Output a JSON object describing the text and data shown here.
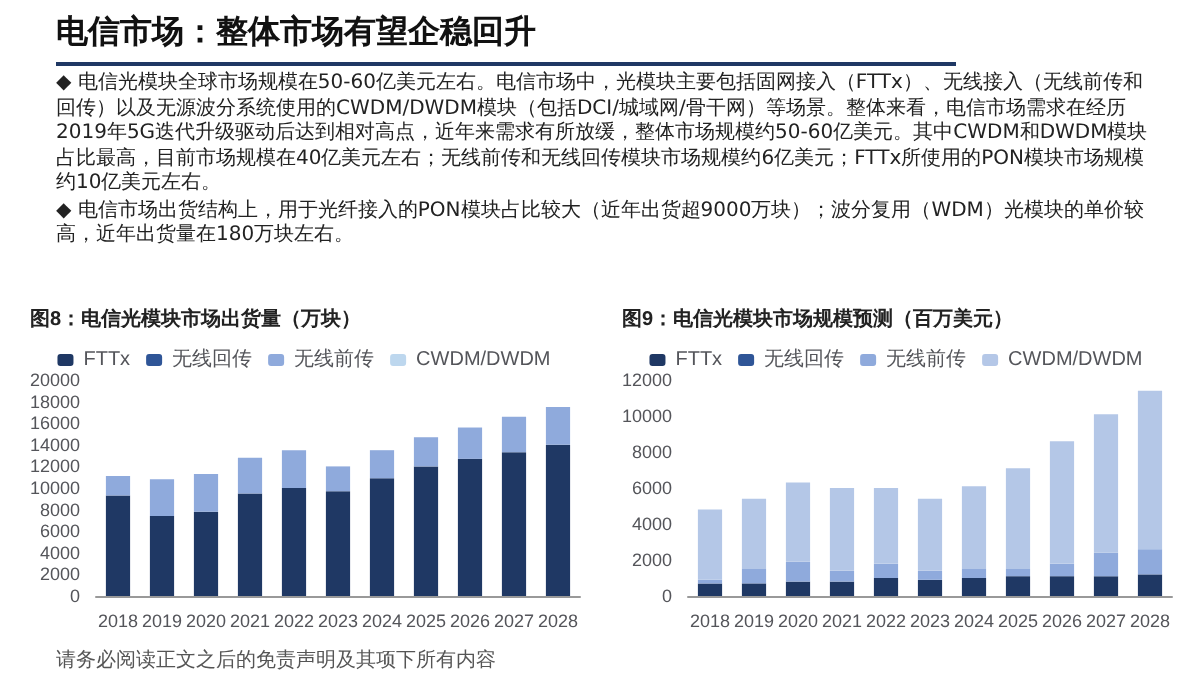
{
  "chart_data": [
    {
      "type": "other",
      "title": "电信市场：整体市场有望企稳回升",
      "annotations": [
        "◆ 电信光模块全球市场规模在50-60亿美元左右。电信市场中，光模块主要包括固网接入（FTTx）、无线接入（无线前传和回传）以及无源波分系统使用的CWDM/DWDM模块（包括DCI/城域网/骨干网）等场景。整体来看，电信市场需求在经历2019年5G迭代升级驱动后达到相对高点，近年来需求有所放缓，整体市场规模约50-60亿美元。其中CWDM和DWDM模块占比最高，目前市场规模在40亿美元左右；无线前传和无线回传模块市场规模约6亿美元；FTTx所使用的PON模块市场规模约10亿美元左右。",
        "◆ 电信市场出货结构上，用于光纤接入的PON模块占比较大（近年出货超9000万块）；波分复用（WDM）光模块的单价较高，近年出货量在180万块左右。",
        "请务必阅读正文之后的免责声明及其项下所有内容"
      ]
    },
    {
      "type": "bar",
      "title": "图8：电信光模块市场出货量（万块）",
      "stacked": true,
      "legend": "top",
      "categories": [
        "2018",
        "2019",
        "2020",
        "2021",
        "2022",
        "2023",
        "2024",
        "2025",
        "2026",
        "2027",
        "2028"
      ],
      "ylim": [
        0,
        20000
      ],
      "yticks": [
        0,
        2000,
        4000,
        6000,
        8000,
        10000,
        12000,
        14000,
        16000,
        18000,
        20000
      ],
      "series": [
        {
          "name": "FTTx",
          "color": "#1f3864",
          "values": [
            9300,
            7400,
            7800,
            9500,
            10000,
            9700,
            10900,
            12000,
            12700,
            13300,
            14000
          ]
        },
        {
          "name": "无线回传",
          "color": "#2f5597",
          "values": [
            null,
            null,
            null,
            null,
            null,
            null,
            null,
            null,
            null,
            null,
            null
          ]
        },
        {
          "name": "无线前传",
          "color": "#8faadc",
          "values": [
            1800,
            3400,
            3500,
            3300,
            3500,
            2300,
            2600,
            2700,
            2900,
            3300,
            3500
          ]
        },
        {
          "name": "CWDM/DWDM",
          "color": "#bdd7ee",
          "values": [
            null,
            null,
            null,
            null,
            null,
            null,
            null,
            null,
            null,
            null,
            null
          ]
        }
      ]
    },
    {
      "type": "bar",
      "title": "图9：电信光模块市场规模预测（百万美元）",
      "stacked": true,
      "legend": "top",
      "categories": [
        "2018",
        "2019",
        "2020",
        "2021",
        "2022",
        "2023",
        "2024",
        "2025",
        "2026",
        "2027",
        "2028"
      ],
      "ylim": [
        0,
        12000
      ],
      "yticks": [
        0,
        2000,
        4000,
        6000,
        8000,
        10000,
        12000
      ],
      "series": [
        {
          "name": "FTTx",
          "color": "#1f3864",
          "values": [
            700,
            700,
            800,
            800,
            1000,
            900,
            1000,
            1100,
            1100,
            1100,
            1200
          ]
        },
        {
          "name": "无线回传",
          "color": "#2f5597",
          "values": [
            null,
            null,
            null,
            null,
            null,
            null,
            null,
            null,
            null,
            null,
            null
          ]
        },
        {
          "name": "无线前传",
          "color": "#8faadc",
          "values": [
            200,
            800,
            1100,
            600,
            800,
            500,
            500,
            400,
            700,
            1300,
            1400
          ]
        },
        {
          "name": "CWDM/DWDM",
          "color": "#b4c7e7",
          "values": [
            3900,
            3900,
            4400,
            4600,
            4200,
            4000,
            4600,
            5600,
            6800,
            7700,
            8800
          ]
        }
      ]
    }
  ]
}
